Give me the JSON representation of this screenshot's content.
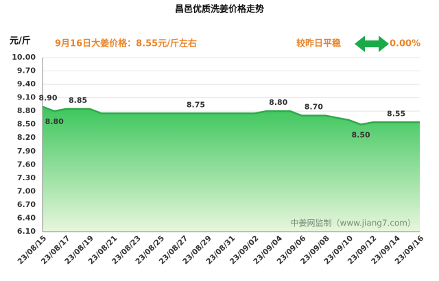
{
  "chart_data": {
    "type": "area",
    "title": "昌邑优质洗姜价格走势",
    "y_label": "元/斤",
    "headline": "9月16日大姜价格：8.55元/斤左右",
    "change_label": "较昨日平稳",
    "change_value": "0.00%",
    "watermark": "中姜网监制（www.jiang7.com）",
    "categories": [
      "23/08/15",
      null,
      "23/08/17",
      null,
      "23/08/19",
      null,
      "23/08/21",
      null,
      "23/08/23",
      null,
      "23/08/25",
      null,
      "23/08/27",
      null,
      "23/08/29",
      null,
      "23/08/31",
      null,
      "23/09/02",
      null,
      "23/09/04",
      null,
      "23/09/06",
      null,
      "23/09/08",
      null,
      "23/09/10",
      null,
      "23/09/12",
      null,
      "23/09/14",
      null,
      "23/09/16"
    ],
    "values": [
      8.9,
      8.8,
      8.85,
      8.85,
      8.85,
      8.75,
      8.75,
      8.75,
      8.75,
      8.75,
      8.75,
      8.75,
      8.75,
      8.75,
      8.75,
      8.75,
      8.75,
      8.75,
      8.75,
      8.8,
      8.8,
      8.8,
      8.7,
      8.7,
      8.7,
      8.65,
      8.6,
      8.5,
      8.55,
      8.55,
      8.55,
      8.55,
      8.55
    ],
    "value_labels": [
      "8.90",
      "8.80",
      null,
      "8.85",
      null,
      null,
      null,
      null,
      null,
      null,
      null,
      null,
      null,
      "8.75",
      null,
      null,
      null,
      null,
      null,
      null,
      "8.80",
      null,
      null,
      "8.70",
      null,
      null,
      null,
      "8.50",
      null,
      null,
      "8.55",
      null,
      null
    ],
    "color": "#2fa84a",
    "ylim": [
      6.1,
      10.0
    ],
    "yticks": [
      {
        "value": 6.1,
        "label": "6.10"
      },
      {
        "value": 6.4,
        "label": "6.40"
      },
      {
        "value": 6.7,
        "label": "6.70"
      },
      {
        "value": 7.0,
        "label": "7.00"
      },
      {
        "value": 7.3,
        "label": "7.30"
      },
      {
        "value": 7.6,
        "label": "7.60"
      },
      {
        "value": 7.9,
        "label": "7.90"
      },
      {
        "value": 8.2,
        "label": "8.20"
      },
      {
        "value": 8.5,
        "label": "8.50"
      },
      {
        "value": 8.8,
        "label": "8.80"
      },
      {
        "value": 9.1,
        "label": "9.10"
      },
      {
        "value": 9.4,
        "label": "9.40"
      },
      {
        "value": 9.7,
        "label": "9.70"
      },
      {
        "value": 10.0,
        "label": "10.00"
      }
    ],
    "grid": true
  }
}
